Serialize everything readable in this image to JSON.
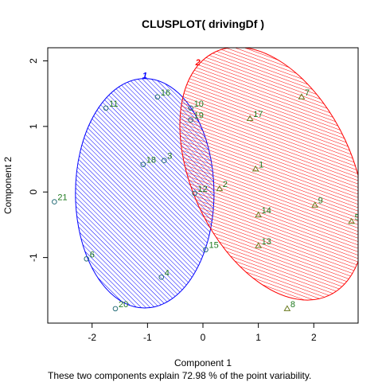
{
  "chart_data": {
    "type": "scatter",
    "title": "CLUSPLOT( drivingDf )",
    "xlabel": "Component 1",
    "ylabel": "Component 2",
    "caption": "These two components explain 72.98 % of the point variability.",
    "xlim": [
      -2.8,
      2.8
    ],
    "ylim": [
      -2.0,
      2.2
    ],
    "x_ticks": [
      -2,
      -1,
      0,
      1,
      2
    ],
    "y_ticks": [
      -1,
      0,
      1,
      2
    ],
    "grid": false,
    "colors": {
      "cluster1": "#0000ff",
      "cluster2": "#ff0000",
      "label": "#1f7a1f",
      "point": "#2a6f7a"
    },
    "clusters": [
      {
        "id": "1",
        "color": "#0000ff",
        "ellipse": {
          "cx": -1.05,
          "cy": -0.02,
          "rx": 1.25,
          "ry": 1.75,
          "angle": 0
        },
        "points": [
          {
            "label": "3",
            "x": -0.7,
            "y": 0.48
          },
          {
            "label": "4",
            "x": -0.75,
            "y": -1.3
          },
          {
            "label": "6",
            "x": -2.1,
            "y": -1.02
          },
          {
            "label": "10",
            "x": -0.22,
            "y": 1.28
          },
          {
            "label": "11",
            "x": -1.75,
            "y": 1.28
          },
          {
            "label": "12",
            "x": -0.15,
            "y": -0.02
          },
          {
            "label": "15",
            "x": 0.05,
            "y": -0.88
          },
          {
            "label": "16",
            "x": -0.82,
            "y": 1.45
          },
          {
            "label": "18",
            "x": -1.08,
            "y": 0.42
          },
          {
            "label": "19",
            "x": -0.22,
            "y": 1.1
          },
          {
            "label": "20",
            "x": -1.58,
            "y": -1.78
          },
          {
            "label": "21",
            "x": -2.68,
            "y": -0.15
          }
        ]
      },
      {
        "id": "2",
        "color": "#ff0000",
        "ellipse": {
          "cx": 1.25,
          "cy": 0.28,
          "rx": 1.45,
          "ry": 2.05,
          "angle": -25
        },
        "points": [
          {
            "label": "1",
            "x": 0.95,
            "y": 0.35
          },
          {
            "label": "2",
            "x": 0.3,
            "y": 0.05
          },
          {
            "label": "5",
            "x": 2.68,
            "y": -0.45
          },
          {
            "label": "7",
            "x": 1.78,
            "y": 1.45
          },
          {
            "label": "8",
            "x": 1.52,
            "y": -1.78
          },
          {
            "label": "9",
            "x": 2.02,
            "y": -0.2
          },
          {
            "label": "13",
            "x": 1.0,
            "y": -0.82
          },
          {
            "label": "14",
            "x": 1.0,
            "y": -0.35
          },
          {
            "label": "17",
            "x": 0.85,
            "y": 1.12
          }
        ]
      }
    ]
  }
}
